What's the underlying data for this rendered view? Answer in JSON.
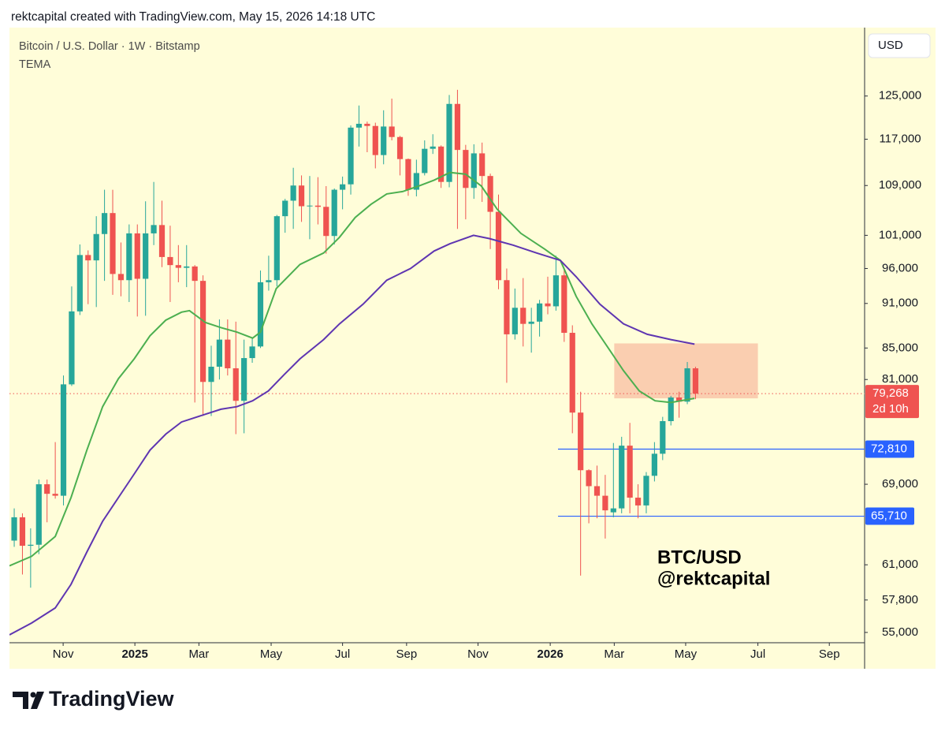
{
  "chart_data": {
    "type": "candlestick",
    "header": "rektcapital created with TradingView.com, May 15, 2026 14:18 UTC",
    "title": "Bitcoin / U.S. Dollar · 1W · Bitstamp",
    "indicator": "TEMA",
    "currency": "USD",
    "annotation": [
      "BTC/USD",
      "@rektcapital"
    ],
    "brand": "TradingView",
    "log_scale": true,
    "grid": false,
    "up_color": "#26a69a",
    "down_color": "#ef5350",
    "background": "#fffdd9",
    "x": [
      0,
      1,
      2,
      3,
      4,
      5,
      6,
      7,
      8,
      9,
      10,
      11,
      12,
      13,
      14,
      15,
      16,
      17,
      18,
      19,
      20,
      21,
      22,
      23,
      24,
      25,
      26,
      27,
      28,
      29,
      30,
      31,
      32,
      33,
      34,
      35,
      36,
      37,
      38,
      39,
      40,
      41,
      42,
      43,
      44,
      45,
      46,
      47,
      48,
      49,
      50,
      51,
      52,
      53,
      54,
      55,
      56,
      57,
      58,
      59,
      60,
      61,
      62,
      63,
      64,
      65,
      66,
      67,
      68,
      69,
      70,
      71,
      72,
      73,
      74,
      75,
      76,
      77,
      78,
      79,
      80,
      81,
      82,
      83
    ],
    "open": [
      63300,
      65600,
      62800,
      62900,
      69000,
      68000,
      67800,
      80400,
      89900,
      98000,
      97200,
      101200,
      104500,
      95200,
      94300,
      101300,
      94500,
      101300,
      102600,
      97700,
      96500,
      96100,
      96300,
      94200,
      80700,
      82600,
      86100,
      82400,
      78400,
      83700,
      85200,
      94000,
      94300,
      104000,
      106500,
      109000,
      105600,
      105700,
      105500,
      100900,
      108300,
      109200,
      119100,
      119800,
      119400,
      114200,
      119300,
      117400,
      113500,
      108300,
      111100,
      115300,
      115700,
      109600,
      123500,
      115100,
      108600,
      114500,
      110600,
      104700,
      94300,
      86800,
      90400,
      88200,
      88500,
      91000,
      90600,
      95000,
      87000,
      77000,
      70500,
      68800,
      67800,
      66100,
      66500,
      73200,
      67600,
      66800,
      69900,
      72300,
      76000,
      78800,
      78300,
      82400
    ],
    "high": [
      66500,
      66000,
      64500,
      69500,
      69500,
      73600,
      81500,
      93400,
      99600,
      98700,
      104000,
      108300,
      108300,
      99900,
      102700,
      102700,
      106400,
      109600,
      106500,
      102500,
      99500,
      99500,
      96500,
      95000,
      85300,
      88800,
      88800,
      88500,
      86100,
      86400,
      95700,
      97900,
      104200,
      106800,
      112000,
      110700,
      110600,
      110400,
      108900,
      108500,
      110500,
      119500,
      123200,
      120200,
      120000,
      122300,
      124500,
      117600,
      113600,
      113400,
      116800,
      117900,
      115900,
      125200,
      126200,
      116000,
      116100,
      116400,
      111000,
      107500,
      96000,
      93100,
      94600,
      90400,
      91500,
      94800,
      97900,
      96000,
      88000,
      79500,
      70600,
      71000,
      70000,
      73500,
      74200,
      75800,
      69000,
      70300,
      73600,
      76500,
      79000,
      79500,
      83200,
      82600
    ],
    "low": [
      62700,
      60100,
      58900,
      62000,
      65100,
      67500,
      66800,
      80200,
      89400,
      90900,
      90500,
      94200,
      92200,
      92000,
      91200,
      89200,
      89300,
      99500,
      96200,
      91200,
      94000,
      93300,
      78200,
      76600,
      76600,
      81000,
      81500,
      74500,
      74600,
      83100,
      85000,
      92800,
      93400,
      101400,
      102000,
      103100,
      100400,
      102700,
      98200,
      99600,
      105100,
      107500,
      115700,
      114700,
      111900,
      112600,
      116800,
      110700,
      107300,
      107200,
      110700,
      114400,
      108600,
      108700,
      102000,
      103500,
      106800,
      106300,
      98900,
      93000,
      80600,
      86100,
      85200,
      84400,
      86500,
      89500,
      90000,
      85800,
      74600,
      60000,
      65000,
      65500,
      63500,
      65600,
      66000,
      66000,
      65500,
      66000,
      69300,
      71600,
      75500,
      76400,
      78000,
      78600
    ],
    "close": [
      65600,
      62800,
      62900,
      69000,
      68000,
      67800,
      80400,
      89900,
      98000,
      97200,
      101200,
      104500,
      95200,
      94300,
      101300,
      94500,
      101300,
      102600,
      97700,
      96500,
      96100,
      96300,
      94200,
      80700,
      82600,
      86100,
      82400,
      78400,
      83700,
      85200,
      94000,
      94300,
      104000,
      106500,
      109000,
      105600,
      105700,
      105500,
      100900,
      108300,
      109200,
      119100,
      119800,
      119400,
      114200,
      119300,
      117400,
      113500,
      108300,
      111100,
      115300,
      115700,
      109600,
      123500,
      115100,
      108600,
      114500,
      110600,
      104700,
      94300,
      86800,
      90400,
      88200,
      88500,
      91000,
      90600,
      95000,
      87000,
      77000,
      70500,
      68800,
      67800,
      66300,
      66500,
      73200,
      67600,
      66800,
      69900,
      72300,
      76000,
      78800,
      78300,
      82400,
      79268
    ],
    "lines": [
      {
        "color": "#4caf50",
        "x": [
          -0.58,
          2.12,
          5.0,
          6.92,
          8.85,
          10.77,
          12.69,
          14.62,
          16.54,
          18.46,
          20.38,
          21.35,
          23.27,
          25.19,
          27.12,
          29.04,
          30.0,
          31.92,
          34.81,
          37.69,
          39.62,
          41.54,
          43.46,
          45.38,
          47.31,
          49.23,
          51.15,
          53.08,
          55.0,
          56.92,
          58.85,
          61.73,
          64.62,
          66.54,
          68.46,
          70.38,
          72.31,
          74.23,
          76.15,
          78.08,
          80.0,
          82.88
        ],
        "values": [
          60900,
          61800,
          63700,
          67600,
          72700,
          77700,
          81100,
          83600,
          86600,
          88700,
          89800,
          90000,
          88400,
          87700,
          87100,
          86300,
          87100,
          93100,
          96600,
          98300,
          100700,
          103800,
          105900,
          107600,
          108000,
          108900,
          109900,
          111200,
          110900,
          108900,
          105100,
          101300,
          98900,
          97200,
          92000,
          88200,
          85100,
          82100,
          79600,
          78400,
          78200,
          78700
        ]
      },
      {
        "color": "#5e35b1",
        "x": [
          -0.58,
          2.12,
          5.0,
          6.92,
          8.85,
          10.77,
          12.69,
          14.62,
          16.54,
          18.46,
          20.38,
          23.27,
          25.19,
          27.12,
          29.04,
          30.96,
          32.88,
          34.81,
          37.69,
          39.62,
          42.5,
          45.38,
          48.27,
          51.15,
          53.08,
          55.96,
          57.88,
          60.77,
          63.65,
          66.54,
          68.46,
          71.35,
          74.23,
          77.12,
          80.0,
          82.88
        ],
        "values": [
          54800,
          55800,
          57100,
          59200,
          62200,
          65200,
          67600,
          70100,
          72700,
          74500,
          75900,
          76800,
          77400,
          77700,
          78400,
          79600,
          81600,
          83600,
          86100,
          88200,
          90900,
          94300,
          96000,
          98600,
          99700,
          101000,
          100500,
          99500,
          98300,
          97200,
          94800,
          90900,
          88200,
          86800,
          86100,
          85500
        ]
      }
    ],
    "zone": {
      "color": "#f9c6a8",
      "x": [
        73.1,
        90.6
      ],
      "values": [
        85600,
        78700
      ]
    },
    "levels": [
      {
        "value": 72810,
        "label": "72,810",
        "x_start": 66.25,
        "color": "#2962ff"
      },
      {
        "value": 65710,
        "label": "65,710",
        "x_start": 66.25,
        "color": "#2962ff"
      }
    ],
    "last_price": {
      "value": 79268,
      "label": "79,268",
      "countdown": "2d 10h",
      "color": "#ef5350"
    },
    "xlim": [
      -0.58,
      103.6
    ],
    "ylim": [
      54140,
      138800
    ],
    "xticks": [
      {
        "value": 5.96,
        "label": "Nov"
      },
      {
        "value": 14.7,
        "label": "2025"
      },
      {
        "value": 22.5,
        "label": "Mar"
      },
      {
        "value": 31.3,
        "label": "May"
      },
      {
        "value": 40.0,
        "label": "Jul"
      },
      {
        "value": 47.8,
        "label": "Sep"
      },
      {
        "value": 56.5,
        "label": "Nov"
      },
      {
        "value": 65.3,
        "label": "2026"
      },
      {
        "value": 73.1,
        "label": "Mar"
      },
      {
        "value": 81.8,
        "label": "May"
      },
      {
        "value": 90.6,
        "label": "Jul"
      },
      {
        "value": 99.3,
        "label": "Sep"
      }
    ],
    "yticks": [
      {
        "value": 125000,
        "label": "125,000"
      },
      {
        "value": 117000,
        "label": "117,000"
      },
      {
        "value": 109000,
        "label": "109,000"
      },
      {
        "value": 101000,
        "label": "101,000"
      },
      {
        "value": 96000,
        "label": "96,000"
      },
      {
        "value": 91000,
        "label": "91,000"
      },
      {
        "value": 85000,
        "label": "85,000"
      },
      {
        "value": 81000,
        "label": "81,000"
      },
      {
        "value": 69000,
        "label": "69,000"
      },
      {
        "value": 61000,
        "label": "61,000"
      },
      {
        "value": 57800,
        "label": "57,800"
      },
      {
        "value": 55000,
        "label": "55,000"
      }
    ]
  }
}
